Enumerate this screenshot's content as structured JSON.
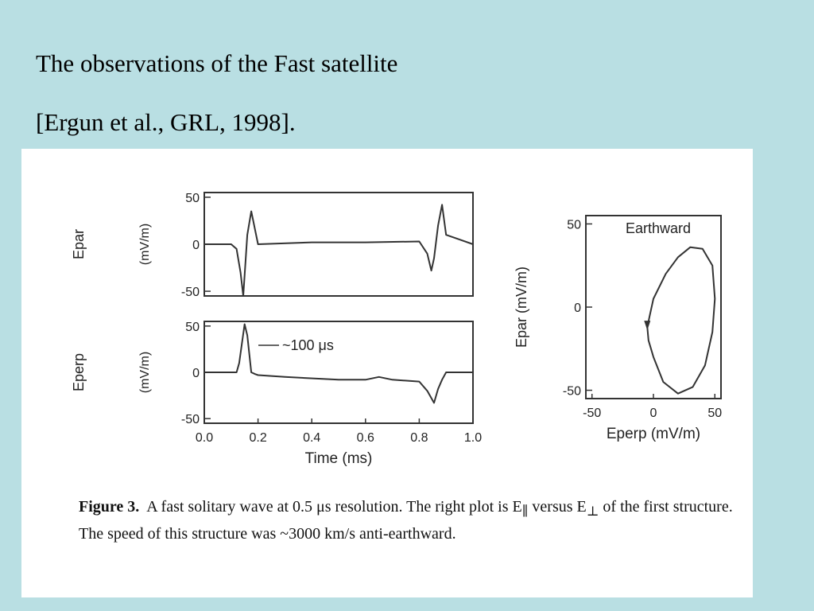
{
  "slide": {
    "title_line1": "The observations of the Fast satellite",
    "title_line2": "[Ergun et al., GRL, 1998]."
  },
  "caption": {
    "figure_label": "Figure 3.",
    "text_part1": "A fast solitary wave at 0.5 μs resolution. The right plot is E",
    "par_sub": "∥",
    "text_part2": " versus E",
    "perp_sub": "⊥",
    "text_part3": " of the first structure. The speed of this structure was ~3000 km/s anti-earthward."
  },
  "colors": {
    "background": "#b9dfe3",
    "panel": "#ffffff",
    "ink": "#333333"
  },
  "chart_data": [
    {
      "type": "line",
      "id": "epar-vs-time",
      "ylabel": "Epar",
      "yunit": "(mV/m)",
      "xlim": [
        0.0,
        1.0
      ],
      "ylim": [
        -55,
        55
      ],
      "yticks": [
        50,
        0,
        -50
      ],
      "series": [
        {
          "x": [
            0.0,
            0.1,
            0.12,
            0.135,
            0.145,
            0.16,
            0.175,
            0.2,
            0.4,
            0.6,
            0.8,
            0.83,
            0.845,
            0.855,
            0.87,
            0.885,
            0.9,
            0.95,
            1.0
          ],
          "y": [
            0,
            0,
            -5,
            -30,
            -55,
            10,
            35,
            0,
            2,
            2,
            3,
            -10,
            -28,
            -15,
            20,
            42,
            10,
            5,
            0
          ]
        }
      ]
    },
    {
      "type": "line",
      "id": "eperp-vs-time",
      "ylabel": "Eperp",
      "yunit": "(mV/m)",
      "xlabel": "Time (ms)",
      "xlim": [
        0.0,
        1.0
      ],
      "ylim": [
        -55,
        55
      ],
      "yticks": [
        50,
        0,
        -50
      ],
      "xticks": [
        "0.0",
        "0.2",
        "0.4",
        "0.6",
        "0.8",
        "1.0"
      ],
      "annotation": "~100 μs",
      "series": [
        {
          "x": [
            0.0,
            0.12,
            0.13,
            0.15,
            0.16,
            0.175,
            0.19,
            0.2,
            0.3,
            0.5,
            0.6,
            0.65,
            0.7,
            0.8,
            0.83,
            0.855,
            0.87,
            0.885,
            0.9,
            1.0
          ],
          "y": [
            0,
            0,
            10,
            52,
            40,
            0,
            -2,
            -3,
            -5,
            -8,
            -8,
            -5,
            -8,
            -10,
            -20,
            -33,
            -18,
            -8,
            0,
            0
          ]
        }
      ]
    },
    {
      "type": "scatter",
      "id": "epar-vs-eperp",
      "title": "Earthward",
      "xlabel": "Eperp (mV/m)",
      "ylabel": "Epar (mV/m)",
      "xlim": [
        -55,
        55
      ],
      "ylim": [
        -55,
        55
      ],
      "xticks": [
        -50,
        0,
        50
      ],
      "yticks": [
        50,
        0,
        -50
      ],
      "series": [
        {
          "x": [
            0,
            8,
            20,
            32,
            42,
            48,
            50,
            48,
            40,
            30,
            20,
            10,
            0,
            -3,
            -5,
            -4,
            0
          ],
          "y": [
            -30,
            -45,
            -52,
            -48,
            -35,
            -15,
            5,
            25,
            35,
            36,
            30,
            20,
            5,
            -5,
            -12,
            -20,
            -30
          ]
        }
      ]
    }
  ]
}
